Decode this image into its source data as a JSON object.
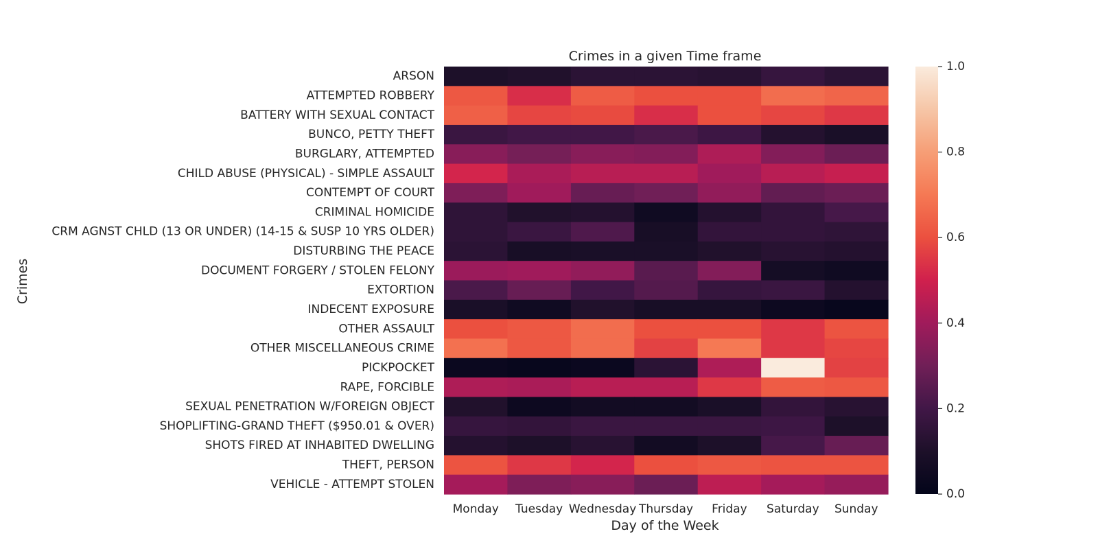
{
  "chart_data": {
    "type": "heatmap",
    "title": "Crimes in a given Time frame",
    "xlabel": "Day of the Week",
    "ylabel": "Crimes",
    "x_categories": [
      "Monday",
      "Tuesday",
      "Wednesday",
      "Thursday",
      "Friday",
      "Saturday",
      "Sunday"
    ],
    "y_categories": [
      "ARSON",
      "ATTEMPTED ROBBERY",
      "BATTERY WITH SEXUAL CONTACT",
      "BUNCO, PETTY THEFT",
      "BURGLARY, ATTEMPTED",
      "CHILD ABUSE (PHYSICAL) - SIMPLE ASSAULT",
      "CONTEMPT OF COURT",
      "CRIMINAL HOMICIDE",
      "CRM AGNST CHLD (13 OR UNDER) (14-15 & SUSP 10 YRS OLDER)",
      "DISTURBING THE PEACE",
      "DOCUMENT FORGERY / STOLEN FELONY",
      "EXTORTION",
      "INDECENT EXPOSURE",
      "OTHER ASSAULT",
      "OTHER MISCELLANEOUS CRIME",
      "PICKPOCKET",
      "RAPE, FORCIBLE",
      "SEXUAL PENETRATION W/FOREIGN OBJECT",
      "SHOPLIFTING-GRAND THEFT ($950.01 & OVER)",
      "SHOTS FIRED AT INHABITED DWELLING",
      "THEFT, PERSON",
      "VEHICLE - ATTEMPT STOLEN"
    ],
    "values": [
      [
        0.1,
        0.11,
        0.14,
        0.14,
        0.13,
        0.17,
        0.14
      ],
      [
        0.62,
        0.53,
        0.63,
        0.6,
        0.6,
        0.67,
        0.65
      ],
      [
        0.64,
        0.58,
        0.59,
        0.53,
        0.6,
        0.58,
        0.55
      ],
      [
        0.18,
        0.2,
        0.2,
        0.22,
        0.19,
        0.12,
        0.09
      ],
      [
        0.35,
        0.31,
        0.35,
        0.34,
        0.43,
        0.34,
        0.29
      ],
      [
        0.51,
        0.42,
        0.45,
        0.45,
        0.4,
        0.45,
        0.48
      ],
      [
        0.33,
        0.4,
        0.28,
        0.3,
        0.37,
        0.27,
        0.29
      ],
      [
        0.15,
        0.11,
        0.12,
        0.05,
        0.12,
        0.16,
        0.21
      ],
      [
        0.15,
        0.18,
        0.23,
        0.08,
        0.16,
        0.16,
        0.15
      ],
      [
        0.14,
        0.08,
        0.09,
        0.09,
        0.11,
        0.13,
        0.12
      ],
      [
        0.39,
        0.4,
        0.37,
        0.25,
        0.34,
        0.07,
        0.05
      ],
      [
        0.22,
        0.28,
        0.2,
        0.24,
        0.17,
        0.18,
        0.12
      ],
      [
        0.09,
        0.05,
        0.11,
        0.08,
        0.08,
        0.04,
        0.02
      ],
      [
        0.6,
        0.62,
        0.67,
        0.6,
        0.6,
        0.55,
        0.61
      ],
      [
        0.68,
        0.62,
        0.67,
        0.57,
        0.7,
        0.55,
        0.58
      ],
      [
        0.03,
        0.02,
        0.03,
        0.14,
        0.43,
        1.0,
        0.57
      ],
      [
        0.43,
        0.42,
        0.45,
        0.45,
        0.55,
        0.63,
        0.62
      ],
      [
        0.11,
        0.04,
        0.06,
        0.06,
        0.09,
        0.16,
        0.13
      ],
      [
        0.17,
        0.16,
        0.18,
        0.18,
        0.18,
        0.19,
        0.1
      ],
      [
        0.12,
        0.1,
        0.13,
        0.06,
        0.1,
        0.21,
        0.28
      ],
      [
        0.61,
        0.55,
        0.51,
        0.6,
        0.62,
        0.61,
        0.61
      ],
      [
        0.41,
        0.33,
        0.35,
        0.29,
        0.46,
        0.41,
        0.38
      ]
    ],
    "vmin": 0.0,
    "vmax": 1.0,
    "colormap": "rocket",
    "colorbar_ticks": [
      "0.0",
      "0.2",
      "0.4",
      "0.6",
      "0.8",
      "1.0"
    ],
    "grid": false
  }
}
